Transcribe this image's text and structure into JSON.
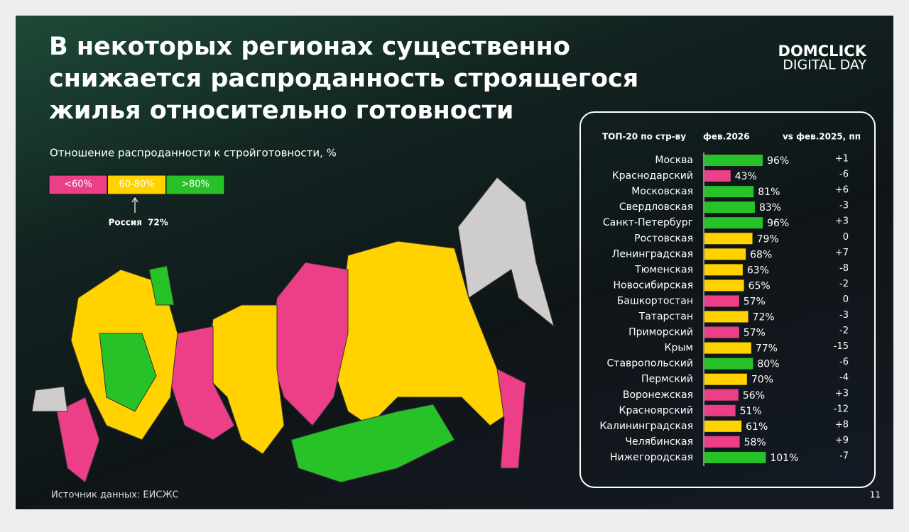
{
  "title": [
    "В некоторых регионах существенно",
    "снижается распроданность строящегося",
    "жилья относительно готовности"
  ],
  "logo": [
    "DOMCLICK",
    "DIGITAL DAY"
  ],
  "subtitle": "Отношение распроданности к стройготовности, %",
  "legend": [
    {
      "label": "<60%",
      "color": "#ed3e88"
    },
    {
      "label": "60-80%",
      "color": "#ffd200"
    },
    {
      "label": ">80%",
      "color": "#27c227"
    }
  ],
  "russia": {
    "label": "Россия",
    "value": "72%"
  },
  "source": "Источник данных: ЕИСЖС",
  "page_number": "11",
  "chart_data": {
    "type": "bar",
    "orientation": "horizontal",
    "headers": [
      "ТОП-20 по стр-ву",
      "фев.2026",
      "vs фев.2025, пп"
    ],
    "categories": [
      "Москва",
      "Краснодарский",
      "Московская",
      "Свердловская",
      "Санкт-Петербург",
      "Ростовская",
      "Ленинградская",
      "Тюменская",
      "Новосибирская",
      "Башкортостан",
      "Татарстан",
      "Приморский",
      "Крым",
      "Ставропольский",
      "Пермский",
      "Воронежская",
      "Красноярский",
      "Калининградская",
      "Челябинская",
      "Нижегородская"
    ],
    "values": [
      96,
      43,
      81,
      83,
      96,
      79,
      68,
      63,
      65,
      57,
      72,
      57,
      77,
      80,
      70,
      56,
      51,
      61,
      58,
      101
    ],
    "value_labels": [
      "96%",
      "43%",
      "81%",
      "83%",
      "96%",
      "79%",
      "68%",
      "63%",
      "65%",
      "57%",
      "72%",
      "57%",
      "77%",
      "80%",
      "70%",
      "56%",
      "51%",
      "61%",
      "58%",
      "101%"
    ],
    "colors": [
      "#27c227",
      "#ed3e88",
      "#27c227",
      "#27c227",
      "#27c227",
      "#ffd200",
      "#ffd200",
      "#ffd200",
      "#ffd200",
      "#ed3e88",
      "#ffd200",
      "#ed3e88",
      "#ffd200",
      "#27c227",
      "#ffd200",
      "#ed3e88",
      "#ed3e88",
      "#ffd200",
      "#ed3e88",
      "#27c227"
    ],
    "changes": [
      1,
      -6,
      6,
      -3,
      3,
      0,
      7,
      -8,
      -2,
      0,
      -3,
      -2,
      -15,
      -6,
      -4,
      3,
      -12,
      8,
      9,
      -7
    ],
    "change_labels": [
      "+1",
      "-6",
      "+6",
      "-3",
      "+3",
      "0",
      "+7",
      "-8",
      "-2",
      "0",
      "-3",
      "-2",
      "-15",
      "-6",
      "-4",
      "+3",
      "-12",
      "+8",
      "+9",
      "-7"
    ]
  }
}
